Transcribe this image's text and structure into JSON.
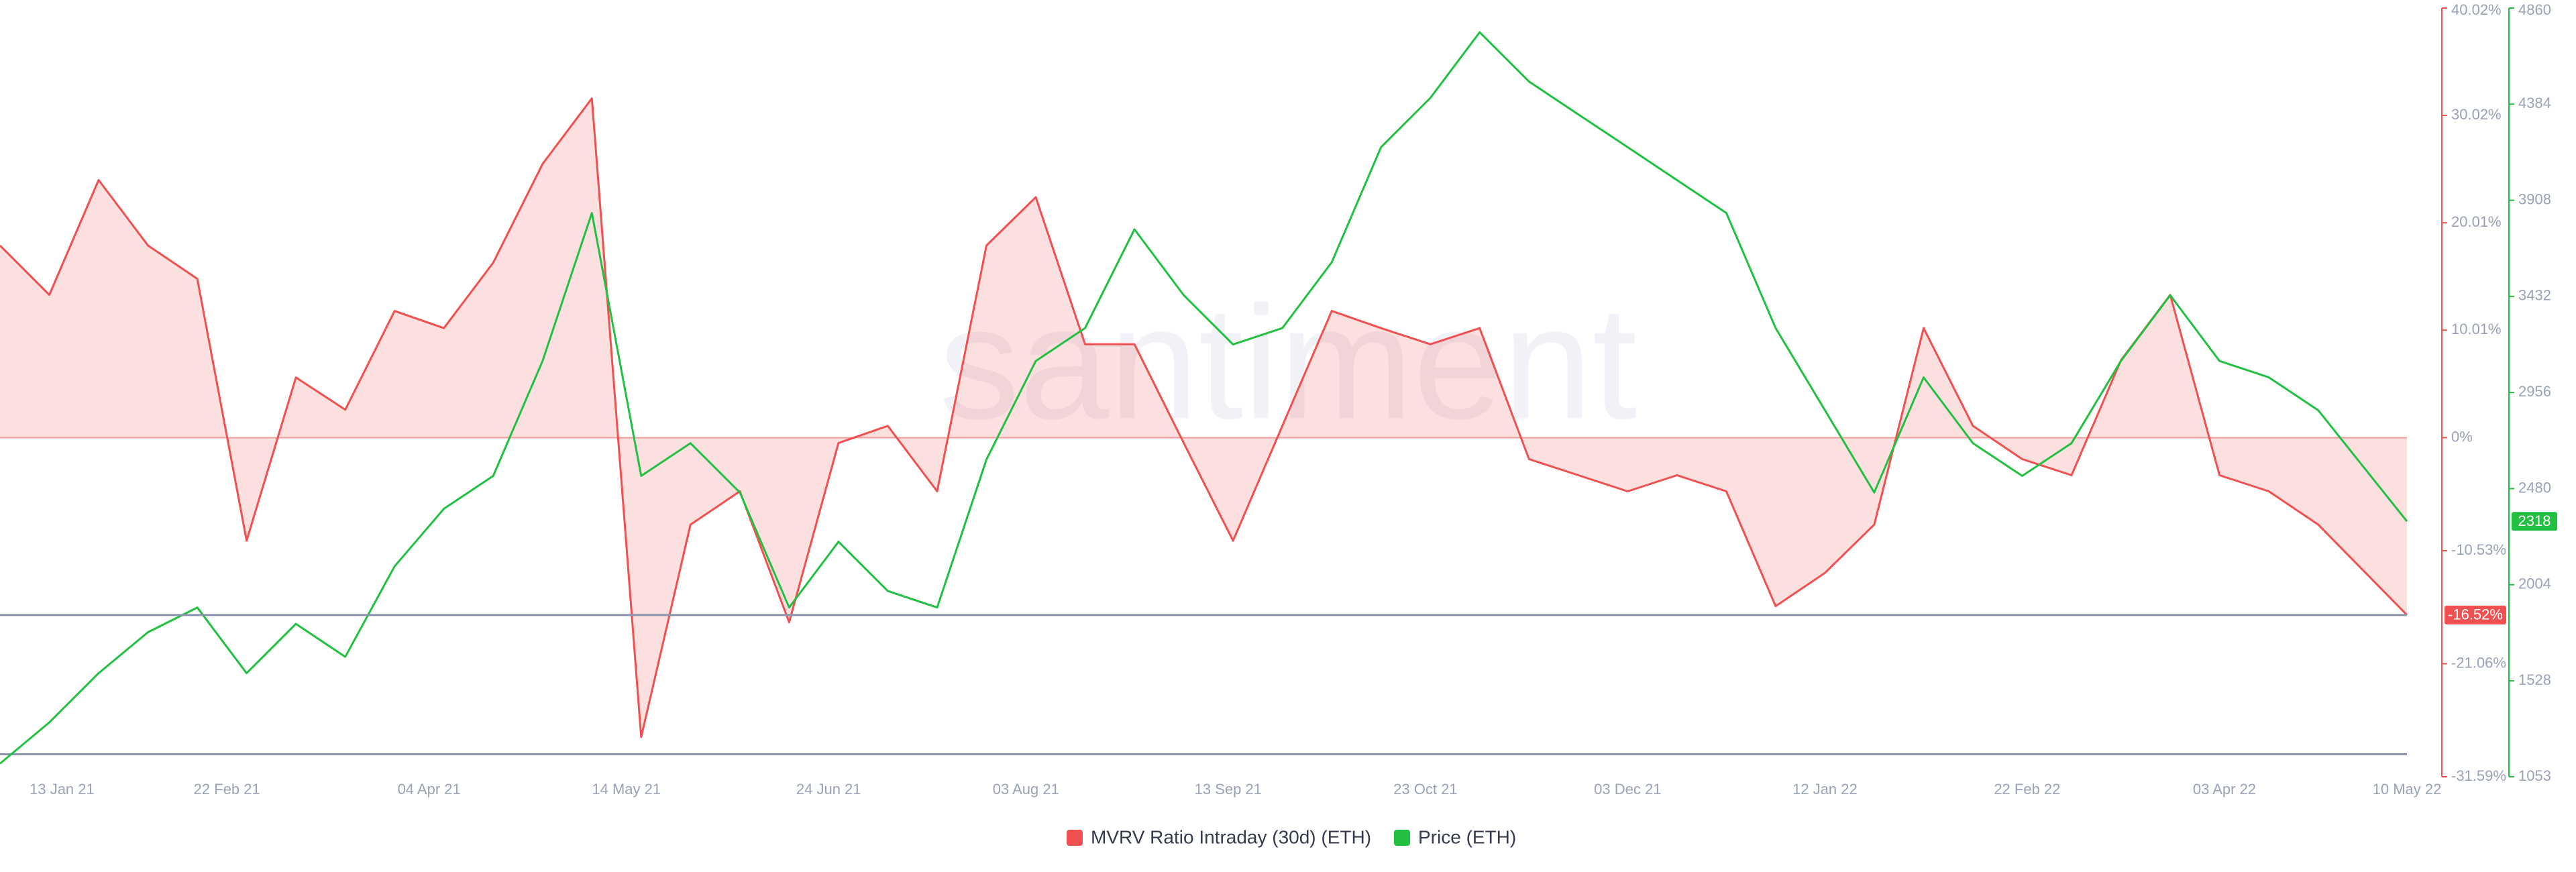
{
  "chart_data": {
    "type": "line",
    "watermark": "santiment",
    "x": [
      "2021-01-07",
      "2021-01-17",
      "2021-01-27",
      "2021-02-06",
      "2021-02-16",
      "2021-02-26",
      "2021-03-08",
      "2021-03-18",
      "2021-03-28",
      "2021-04-07",
      "2021-04-17",
      "2021-04-27",
      "2021-05-07",
      "2021-05-17",
      "2021-05-27",
      "2021-06-06",
      "2021-06-16",
      "2021-06-26",
      "2021-07-06",
      "2021-07-16",
      "2021-07-26",
      "2021-08-05",
      "2021-08-15",
      "2021-08-25",
      "2021-09-04",
      "2021-09-14",
      "2021-09-24",
      "2021-10-04",
      "2021-10-14",
      "2021-10-24",
      "2021-11-03",
      "2021-11-13",
      "2021-11-23",
      "2021-12-03",
      "2021-12-13",
      "2021-12-23",
      "2022-01-02",
      "2022-01-12",
      "2022-01-22",
      "2022-02-01",
      "2022-02-11",
      "2022-02-21",
      "2022-03-03",
      "2022-03-13",
      "2022-03-23",
      "2022-04-02",
      "2022-04-12",
      "2022-04-22",
      "2022-05-10"
    ],
    "series": [
      {
        "name": "MVRV Ratio Intraday (30d) (ETH)",
        "color": "#f0504f",
        "axis": "y",
        "area": true,
        "values": [
          17.9,
          13.3,
          24.0,
          17.9,
          14.8,
          -9.6,
          5.6,
          2.6,
          11.8,
          10.2,
          16.3,
          25.5,
          31.6,
          -27.9,
          -8.1,
          -5.0,
          -17.2,
          -0.5,
          1.1,
          -5.0,
          17.9,
          22.4,
          8.7,
          8.7,
          -0.5,
          -9.6,
          1.1,
          11.8,
          10.2,
          8.7,
          10.2,
          -2.0,
          -3.5,
          -5.0,
          -3.5,
          -5.0,
          -15.7,
          -12.6,
          -8.1,
          10.2,
          1.1,
          -2.0,
          -3.5,
          7.2,
          13.3,
          -3.5,
          -5.0,
          -8.1,
          -16.52
        ]
      },
      {
        "name": "Price (ETH)",
        "color": "#22c042",
        "axis": "y2",
        "values": [
          1118,
          1322,
          1566,
          1769,
          1891,
          1566,
          1810,
          1647,
          2095,
          2380,
          2543,
          3112,
          3845,
          2543,
          2705,
          2461,
          1891,
          2217,
          1973,
          1891,
          2624,
          3112,
          3275,
          3764,
          3438,
          3194,
          3275,
          3601,
          4171,
          4415,
          4740,
          4496,
          4333,
          4171,
          4008,
          3845,
          3275,
          2868,
          2461,
          3031,
          2705,
          2543,
          2705,
          3112,
          3438,
          3112,
          3031,
          2868,
          2318
        ]
      }
    ],
    "xlim": [
      "2021-01-07",
      "2022-05-10"
    ],
    "xticks": [
      {
        "value": "2021-01-13",
        "label": "13 Jan 21"
      },
      {
        "value": "2021-02-22",
        "label": "22 Feb 21"
      },
      {
        "value": "2021-04-04",
        "label": "04 Apr 21"
      },
      {
        "value": "2021-05-14",
        "label": "14 May 21"
      },
      {
        "value": "2021-06-24",
        "label": "24 Jun 21"
      },
      {
        "value": "2021-08-03",
        "label": "03 Aug 21"
      },
      {
        "value": "2021-09-13",
        "label": "13 Sep 21"
      },
      {
        "value": "2021-10-23",
        "label": "23 Oct 21"
      },
      {
        "value": "2021-12-03",
        "label": "03 Dec 21"
      },
      {
        "value": "2022-01-12",
        "label": "12 Jan 22"
      },
      {
        "value": "2022-02-22",
        "label": "22 Feb 22"
      },
      {
        "value": "2022-04-03",
        "label": "03 Apr 22"
      },
      {
        "value": "2022-05-10",
        "label": "10 May 22"
      }
    ],
    "ylim": [
      -31.59,
      40.02
    ],
    "yticks": [
      {
        "value": 40.02,
        "label": "40.02%"
      },
      {
        "value": 30.02,
        "label": "30.02%"
      },
      {
        "value": 20.01,
        "label": "20.01%"
      },
      {
        "value": 10.01,
        "label": "10.01%"
      },
      {
        "value": 0,
        "label": "0%"
      },
      {
        "value": -10.53,
        "label": "-10.53%"
      },
      {
        "value": -21.06,
        "label": "-21.06%"
      },
      {
        "value": -31.59,
        "label": "-31.59%"
      }
    ],
    "y2lim": [
      1053,
      4860
    ],
    "y2ticks": [
      4860,
      4384,
      3908,
      3432,
      2956,
      2480,
      2004,
      1528,
      1053
    ],
    "markers": [
      {
        "axis": "y",
        "value": -16.52,
        "label": "-16.52%",
        "color": "#f0504f"
      },
      {
        "axis": "y2",
        "value": 2318,
        "color": "#22c042"
      }
    ],
    "reference_lines": [
      {
        "axis": "y",
        "value": -29.5
      }
    ],
    "legend": "bottom"
  }
}
